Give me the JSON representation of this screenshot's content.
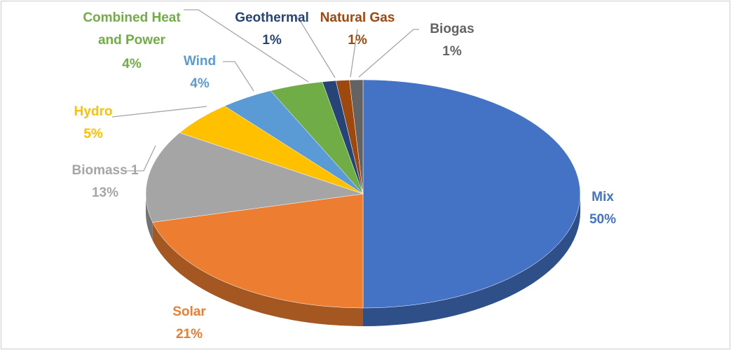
{
  "chart_data": {
    "type": "pie",
    "categories": [
      "Mix",
      "Solar",
      "Biomass 1",
      "Hydro",
      "Wind",
      "Combined Heat and Power",
      "Geothermal",
      "Natural Gas",
      "Biogas"
    ],
    "values": [
      50,
      21,
      13,
      5,
      4,
      4,
      1,
      1,
      1
    ],
    "value_labels": [
      "50%",
      "21%",
      "13%",
      "5%",
      "4%",
      "4%",
      "1%",
      "1%",
      "1%"
    ],
    "colors": [
      "#4472c4",
      "#ed7d31",
      "#a5a5a5",
      "#ffc000",
      "#5b9bd5",
      "#70ad47",
      "#264478",
      "#9e480e",
      "#636363"
    ]
  }
}
